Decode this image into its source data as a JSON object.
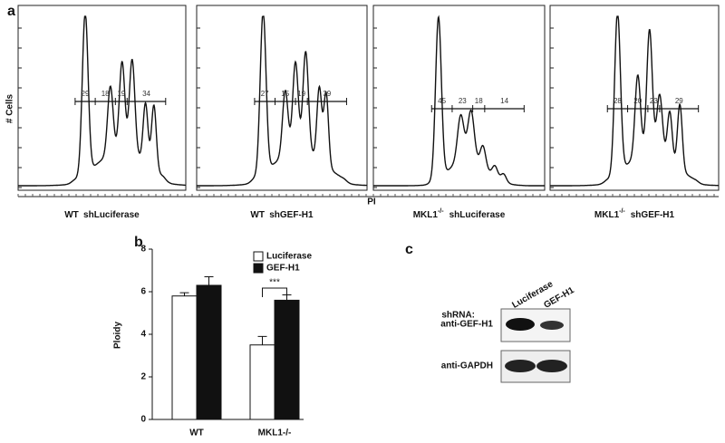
{
  "panel_labels": {
    "a": "a",
    "b": "b",
    "c": "c"
  },
  "histograms": {
    "y_label": "# Cells",
    "x_label": "PI",
    "plots": [
      {
        "genotype": "WT",
        "shrna": "shLuciferase",
        "gates": [
          "29",
          "18",
          "19",
          "34"
        ]
      },
      {
        "genotype": "WT",
        "shrna": "shGEF-H1",
        "gates": [
          "27",
          "15",
          "19",
          "39"
        ]
      },
      {
        "genotype": "MKL1",
        "genotype_sup": "-/-",
        "shrna": "shLuciferase",
        "gates": [
          "45",
          "23",
          "18",
          "14"
        ]
      },
      {
        "genotype": "MKL1",
        "genotype_sup": "-/-",
        "shrna": "shGEF-H1",
        "gates": [
          "28",
          "20",
          "23",
          "29"
        ]
      }
    ]
  },
  "chart_data": {
    "type": "bar",
    "y_label": "Ploidy",
    "categories": [
      "WT",
      "MKL1-/-"
    ],
    "series": [
      {
        "name": "Luciferase",
        "color": "#ffffff",
        "values": [
          5.8,
          3.5
        ],
        "errors": [
          0.15,
          0.4
        ]
      },
      {
        "name": "GEF-H1",
        "color": "#111111",
        "values": [
          6.3,
          5.6
        ],
        "errors": [
          0.4,
          0.25
        ]
      }
    ],
    "ylim": [
      0,
      8
    ],
    "yticks": [
      0,
      2,
      4,
      6,
      8
    ],
    "annotation": "***",
    "legend": "top-right"
  },
  "blot": {
    "shrna_label": "shRNA:",
    "lanes": [
      "Luciferase",
      "GEF-H1"
    ],
    "rows": [
      "anti-GEF-H1",
      "anti-GAPDH"
    ]
  }
}
